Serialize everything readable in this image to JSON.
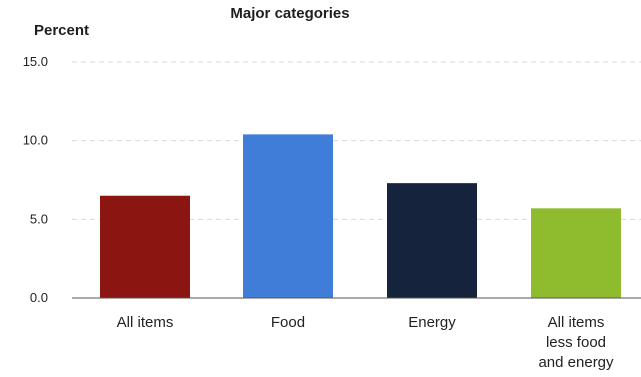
{
  "chart_data": {
    "type": "bar",
    "title": "Major categories",
    "ylabel": "Percent",
    "xlabel": "",
    "categories": [
      "All items",
      "Food",
      "Energy",
      "All items less food and energy"
    ],
    "category_lines": [
      [
        "All items"
      ],
      [
        "Food"
      ],
      [
        "Energy"
      ],
      [
        "All items",
        "less food",
        "and energy"
      ]
    ],
    "values": [
      6.5,
      10.4,
      7.3,
      5.7
    ],
    "colors": [
      "#8b1510",
      "#3f7dd9",
      "#15233d",
      "#8fbb2f"
    ],
    "ylim": [
      0,
      15
    ],
    "yticks": [
      0,
      5,
      10,
      15
    ],
    "ytick_labels": [
      "0.0",
      "5.0",
      "10.0",
      "15.0"
    ],
    "grid": true,
    "legend": "none"
  }
}
